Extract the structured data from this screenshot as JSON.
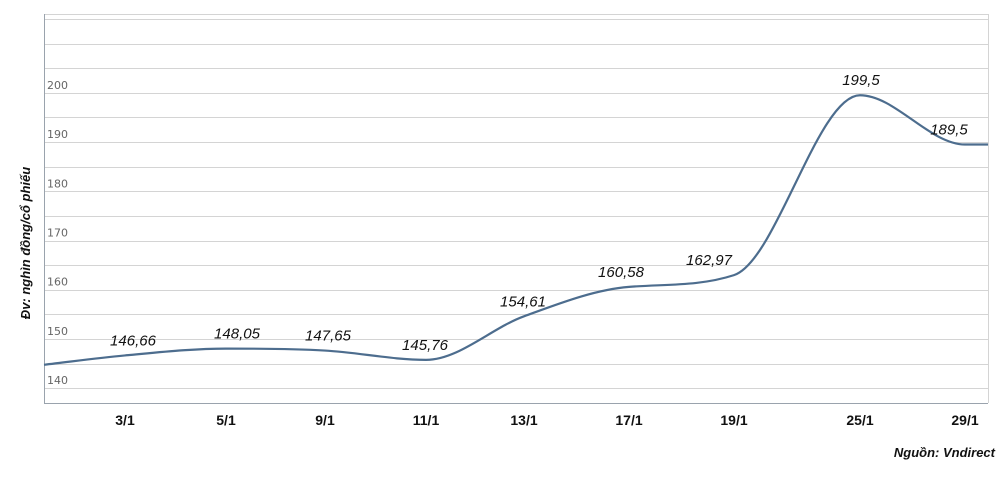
{
  "chart_data": {
    "type": "line",
    "ylabel": "Đv: nghìn đồng/cổ phiếu",
    "xlabel": "",
    "source": "Nguồn: Vndirect",
    "ylim": [
      137,
      216
    ],
    "yticks": [
      140,
      150,
      160,
      170,
      180,
      190,
      200
    ],
    "ytick_labels": [
      "140",
      "150",
      "160",
      "170",
      "180",
      "190",
      "200"
    ],
    "categories": [
      "3/1",
      "5/1",
      "9/1",
      "11/1",
      "13/1",
      "17/1",
      "19/1",
      "25/1",
      "29/1"
    ],
    "series": [
      {
        "color": "#4d6d8e",
        "values": [
          146.66,
          148.05,
          147.65,
          145.76,
          154.61,
          160.58,
          162.97,
          199.5,
          189.5
        ]
      }
    ],
    "data_labels": [
      "146,66",
      "148,05",
      "147,65",
      "145,76",
      "154,61",
      "160,58",
      "162,97",
      "199,5",
      "189,5"
    ],
    "grid": true
  }
}
